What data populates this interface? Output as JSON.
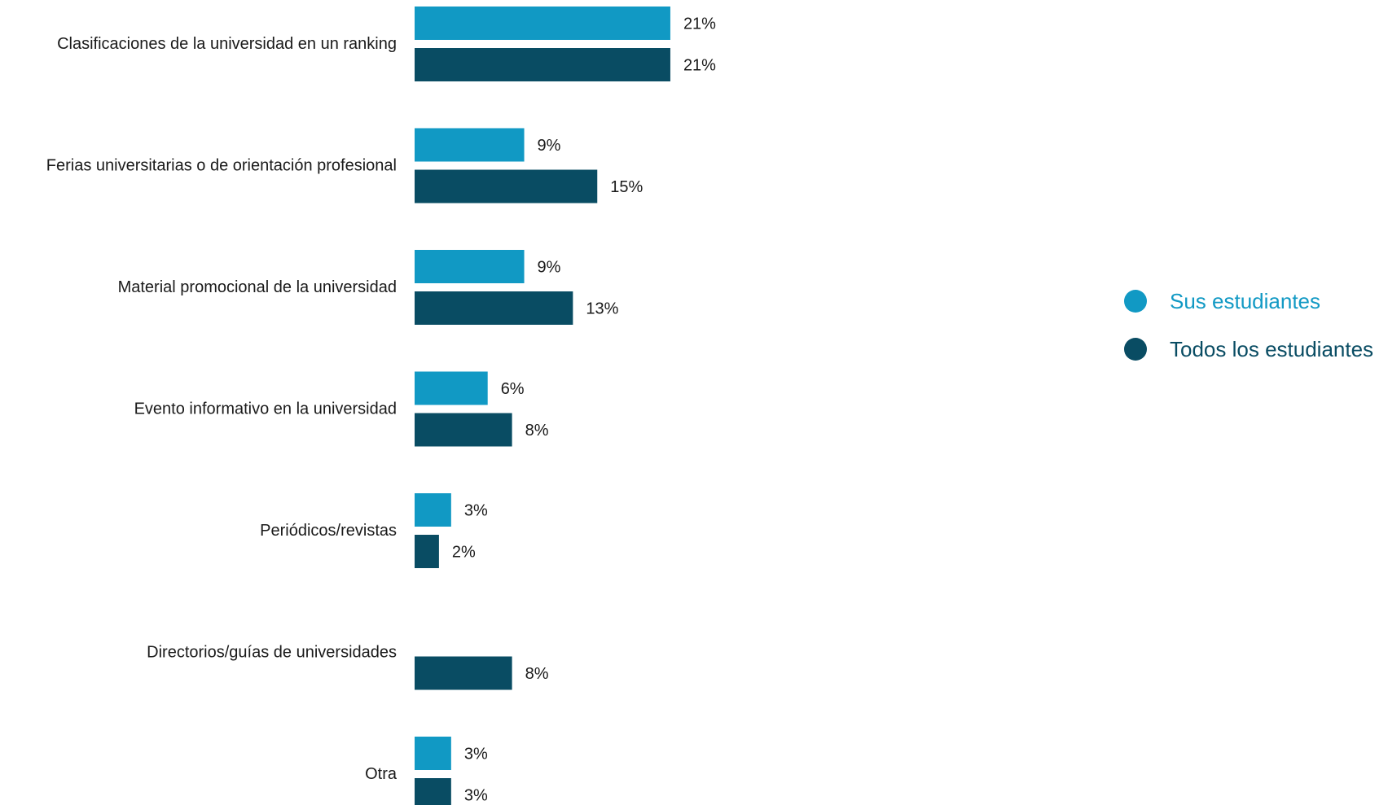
{
  "chart_data": {
    "type": "bar",
    "orientation": "horizontal",
    "categories": [
      "Clasificaciones de la universidad en un ranking",
      "Ferias universitarias o de orientación profesional",
      "Material promocional de la universidad",
      "Evento informativo en la universidad",
      "Periódicos/revistas",
      "Directorios/guías de universidades",
      "Otra"
    ],
    "series": [
      {
        "name": "Sus estudiantes",
        "color": "#1199c4",
        "values": [
          21,
          9,
          9,
          6,
          3,
          null,
          3
        ],
        "labels": [
          "21%",
          "9%",
          "9%",
          "6%",
          "3%",
          "",
          "3%"
        ]
      },
      {
        "name": "Todos los estudiantes",
        "color": "#094c63",
        "values": [
          21,
          15,
          13,
          8,
          2,
          8,
          3
        ],
        "labels": [
          "21%",
          "15%",
          "13%",
          "8%",
          "2%",
          "8%",
          "3%"
        ]
      }
    ],
    "xlim": [
      0,
      100
    ],
    "grid": false,
    "legend_position": "right"
  },
  "legend": {
    "items": [
      {
        "label": "Sus estudiantes",
        "color": "#1199c4"
      },
      {
        "label": "Todos los estudiantes",
        "color": "#094c63"
      }
    ]
  }
}
